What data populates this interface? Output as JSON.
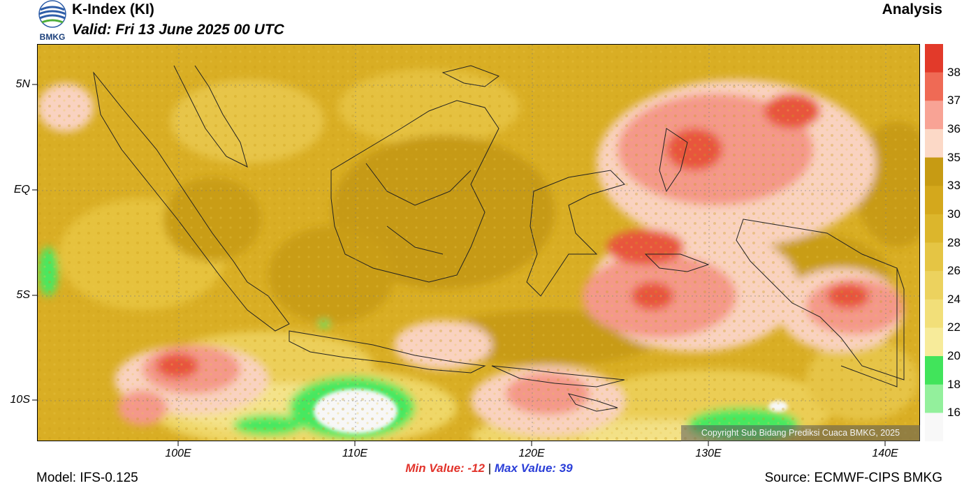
{
  "header": {
    "title": "K-Index (KI)",
    "valid": "Valid: Fri 13 June 2025 00 UTC",
    "product": "Analysis",
    "logo_text": "BMKG"
  },
  "map": {
    "lat_labels": [
      "5N",
      "EQ",
      "5S",
      "10S"
    ],
    "lon_labels": [
      "100E",
      "110E",
      "120E",
      "130E",
      "140E"
    ],
    "copyright": "Copyright Sub Bidang Prediksi Cuaca BMKG, 2025",
    "colors": {
      "high_red": "#e8392b",
      "pink": "#f69b8f",
      "light_pink": "#fad8c6",
      "dark_gold": "#c9a017",
      "gold": "#dcb52b",
      "light_gold": "#ecd05a",
      "pale_yellow": "#f6ea8f",
      "green": "#46e861",
      "light_green": "#9ef2a6",
      "white": "#f7f7f7"
    }
  },
  "legend": {
    "labels": [
      "38",
      "37",
      "36",
      "35",
      "33",
      "30",
      "28",
      "26",
      "24",
      "22",
      "20",
      "18",
      "16"
    ],
    "colors": [
      "#e23a2a",
      "#ef6a55",
      "#f8a395",
      "#fcd9c7",
      "#c79b13",
      "#d4a81c",
      "#dcb62c",
      "#e5c544",
      "#ecd25e",
      "#f2df79",
      "#f7eb9a",
      "#41e45b",
      "#93f09c",
      "#f8f8f8"
    ]
  },
  "footer": {
    "min_label": "Min Value: -12",
    "separator": "|",
    "max_label": "Max Value:  39",
    "model": "Model: IFS-0.125",
    "source": "Source: ECMWF-CIPS BMKG"
  }
}
